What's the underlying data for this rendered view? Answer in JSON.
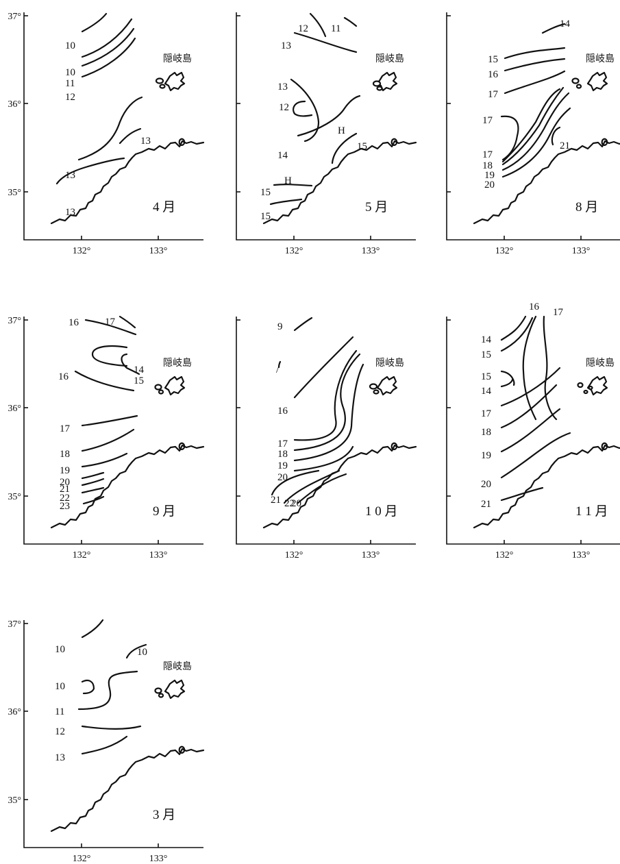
{
  "island_label": "隠岐島",
  "lon_ticks": [
    "132°",
    "133°"
  ],
  "lat_ticks": [
    "37°",
    "36°",
    "35°"
  ],
  "panels": [
    {
      "month": "4 月",
      "show_lat_labels": true,
      "isotherms": [
        "10",
        "10",
        "11",
        "12",
        "13",
        "13",
        "13"
      ],
      "marks": []
    },
    {
      "month": "5 月",
      "show_lat_labels": false,
      "isotherms": [
        "12",
        "11",
        "13",
        "13",
        "12",
        "14",
        "15",
        "15",
        "15"
      ],
      "marks": [
        "H",
        "H"
      ]
    },
    {
      "month": "8 月",
      "show_lat_labels": false,
      "isotherms": [
        "14",
        "15",
        "16",
        "17",
        "17",
        "17",
        "18",
        "19",
        "20",
        "21"
      ],
      "marks": []
    },
    {
      "month": "9 月",
      "show_lat_labels": true,
      "isotherms": [
        "16",
        "17",
        "14",
        "15",
        "16",
        "17",
        "18",
        "19",
        "20",
        "21",
        "22",
        "23"
      ],
      "marks": []
    },
    {
      "month": "1 0 月",
      "show_lat_labels": false,
      "isotherms": [
        "9",
        "/",
        "16",
        "17",
        "18",
        "19",
        "20",
        "21",
        "22",
        "20"
      ],
      "marks": []
    },
    {
      "month": "1 1 月",
      "show_lat_labels": false,
      "isotherms": [
        "14",
        "15",
        "16",
        "17",
        "15",
        "14",
        "17",
        "18",
        "19",
        "20",
        "21"
      ],
      "marks": []
    },
    {
      "month": "3 月",
      "show_lat_labels": true,
      "isotherms": [
        "10",
        "10",
        "10",
        "11",
        "12",
        "13"
      ],
      "marks": []
    }
  ]
}
